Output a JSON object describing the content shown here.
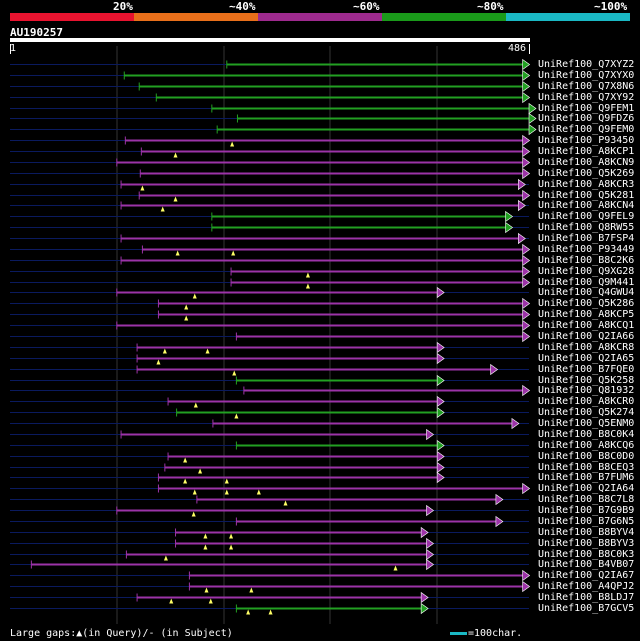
{
  "legend": {
    "segments": [
      {
        "label": "20%",
        "color": "#e8132f"
      },
      {
        "label": "~40%",
        "color": "#e86f1a"
      },
      {
        "label": "~60%",
        "color": "#9e2a8e"
      },
      {
        "label": "~80%",
        "color": "#1a9a1a"
      },
      {
        "label": "~100%",
        "color": "#1ab8c4"
      }
    ]
  },
  "query": {
    "id": "AU190257",
    "start": "1",
    "end": "486",
    "length": 486
  },
  "colors": {
    "green": "#22a022",
    "purple": "#9c33a8",
    "navy": "#0a1a5e",
    "grid": "#333333",
    "marker": "#ffff66"
  },
  "hits": [
    {
      "label": "UniRef100_Q7XYZ2",
      "start": 203,
      "end": 480,
      "color": "green",
      "markers": []
    },
    {
      "label": "UniRef100_Q7XYX0",
      "start": 107,
      "end": 480,
      "color": "green",
      "markers": []
    },
    {
      "label": "UniRef100_Q7X8N6",
      "start": 121,
      "end": 480,
      "color": "green",
      "markers": []
    },
    {
      "label": "UniRef100_Q7XY92",
      "start": 137,
      "end": 480,
      "color": "green",
      "markers": []
    },
    {
      "label": "UniRef100_Q9FEM1",
      "start": 189,
      "end": 486,
      "color": "green",
      "markers": []
    },
    {
      "label": "UniRef100_Q9FDZ6",
      "start": 213,
      "end": 486,
      "color": "green",
      "markers": []
    },
    {
      "label": "UniRef100_Q9FEM0",
      "start": 194,
      "end": 486,
      "color": "green",
      "markers": []
    },
    {
      "label": "UniRef100_P93450",
      "start": 108,
      "end": 480,
      "color": "purple",
      "markers": [
        208
      ]
    },
    {
      "label": "UniRef100_A8KCP1",
      "start": 123,
      "end": 480,
      "color": "purple",
      "markers": [
        155
      ]
    },
    {
      "label": "UniRef100_A8KCN9",
      "start": 100,
      "end": 480,
      "color": "purple",
      "markers": []
    },
    {
      "label": "UniRef100_Q5K269",
      "start": 122,
      "end": 480,
      "color": "purple",
      "markers": []
    },
    {
      "label": "UniRef100_A8KCR3",
      "start": 104,
      "end": 476,
      "color": "purple",
      "markers": [
        124
      ]
    },
    {
      "label": "UniRef100_Q5K281",
      "start": 121,
      "end": 480,
      "color": "purple",
      "markers": [
        155
      ]
    },
    {
      "label": "UniRef100_A8KCN4",
      "start": 104,
      "end": 476,
      "color": "purple",
      "markers": [
        143
      ]
    },
    {
      "label": "UniRef100_Q9FEL9",
      "start": 189,
      "end": 464,
      "color": "green",
      "markers": []
    },
    {
      "label": "UniRef100_Q8RW55",
      "start": 189,
      "end": 464,
      "color": "green",
      "markers": []
    },
    {
      "label": "UniRef100_B7FSP4",
      "start": 104,
      "end": 476,
      "color": "purple",
      "markers": []
    },
    {
      "label": "UniRef100_P93449",
      "start": 124,
      "end": 480,
      "color": "purple",
      "markers": [
        157,
        209
      ]
    },
    {
      "label": "UniRef100_B8C2K6",
      "start": 104,
      "end": 480,
      "color": "purple",
      "markers": []
    },
    {
      "label": "UniRef100_Q9XG28",
      "start": 207,
      "end": 480,
      "color": "purple",
      "markers": [
        279
      ]
    },
    {
      "label": "UniRef100_Q9M441",
      "start": 207,
      "end": 480,
      "color": "purple",
      "markers": [
        279
      ]
    },
    {
      "label": "UniRef100_Q4GWU4",
      "start": 100,
      "end": 400,
      "color": "purple",
      "markers": [
        173
      ]
    },
    {
      "label": "UniRef100_Q5K286",
      "start": 139,
      "end": 480,
      "color": "purple",
      "markers": [
        165
      ]
    },
    {
      "label": "UniRef100_A8KCP5",
      "start": 139,
      "end": 480,
      "color": "purple",
      "markers": [
        165
      ]
    },
    {
      "label": "UniRef100_A8KCQ1",
      "start": 100,
      "end": 480,
      "color": "purple",
      "markers": []
    },
    {
      "label": "UniRef100_Q2IA66",
      "start": 212,
      "end": 480,
      "color": "purple",
      "markers": []
    },
    {
      "label": "UniRef100_A8KCR8",
      "start": 119,
      "end": 400,
      "color": "purple",
      "markers": [
        145,
        185
      ]
    },
    {
      "label": "UniRef100_Q2IA65",
      "start": 119,
      "end": 400,
      "color": "purple",
      "markers": [
        139
      ]
    },
    {
      "label": "UniRef100_B7FQE0",
      "start": 119,
      "end": 450,
      "color": "purple",
      "markers": [
        210
      ]
    },
    {
      "label": "UniRef100_Q5K258",
      "start": 212,
      "end": 400,
      "color": "green",
      "markers": []
    },
    {
      "label": "UniRef100_Q81932",
      "start": 219,
      "end": 480,
      "color": "purple",
      "markers": []
    },
    {
      "label": "UniRef100_A8KCR0",
      "start": 148,
      "end": 400,
      "color": "purple",
      "markers": [
        174
      ]
    },
    {
      "label": "UniRef100_Q5K274",
      "start": 156,
      "end": 400,
      "color": "green",
      "markers": [
        212
      ]
    },
    {
      "label": "UniRef100_Q5ENM0",
      "start": 190,
      "end": 470,
      "color": "purple",
      "markers": []
    },
    {
      "label": "UniRef100_B8C0K4",
      "start": 104,
      "end": 390,
      "color": "purple",
      "markers": []
    },
    {
      "label": "UniRef100_A8KCQ6",
      "start": 212,
      "end": 400,
      "color": "green",
      "markers": []
    },
    {
      "label": "UniRef100_B8C0D0",
      "start": 148,
      "end": 400,
      "color": "purple",
      "markers": [
        164
      ]
    },
    {
      "label": "UniRef100_B8CEQ3",
      "start": 145,
      "end": 400,
      "color": "purple",
      "markers": [
        178
      ]
    },
    {
      "label": "UniRef100_B7FUM6",
      "start": 139,
      "end": 400,
      "color": "purple",
      "markers": [
        164,
        203
      ]
    },
    {
      "label": "UniRef100_Q2IA64",
      "start": 139,
      "end": 480,
      "color": "purple",
      "markers": [
        173,
        203,
        233
      ]
    },
    {
      "label": "UniRef100_B8C7L8",
      "start": 175,
      "end": 455,
      "color": "purple",
      "markers": [
        258
      ]
    },
    {
      "label": "UniRef100_B7G9B9",
      "start": 100,
      "end": 390,
      "color": "purple",
      "markers": [
        172
      ]
    },
    {
      "label": "UniRef100_B7G6N5",
      "start": 212,
      "end": 455,
      "color": "purple",
      "markers": []
    },
    {
      "label": "UniRef100_B8BYV4",
      "start": 155,
      "end": 385,
      "color": "purple",
      "markers": [
        183,
        207
      ]
    },
    {
      "label": "UniRef100_B8BYV3",
      "start": 155,
      "end": 390,
      "color": "purple",
      "markers": [
        183,
        207
      ]
    },
    {
      "label": "UniRef100_B8C0K3",
      "start": 109,
      "end": 390,
      "color": "purple",
      "markers": [
        146
      ]
    },
    {
      "label": "UniRef100_B4VB07",
      "start": 20,
      "end": 390,
      "color": "purple",
      "markers": [
        361
      ]
    },
    {
      "label": "UniRef100_Q2IA67",
      "start": 168,
      "end": 480,
      "color": "purple",
      "markers": []
    },
    {
      "label": "UniRef100_A4QPJ2",
      "start": 168,
      "end": 480,
      "color": "purple",
      "markers": [
        184,
        226
      ]
    },
    {
      "label": "UniRef100_B8LDJ7",
      "start": 119,
      "end": 385,
      "color": "purple",
      "markers": [
        151,
        188
      ]
    },
    {
      "label": "UniRef100_B7GCV5",
      "start": 212,
      "end": 385,
      "color": "green",
      "markers": [
        223,
        244
      ]
    }
  ],
  "footer": {
    "gaps_text": "Large gaps:▲(in Query)/- (in Subject)",
    "scale_text": "=100char."
  }
}
